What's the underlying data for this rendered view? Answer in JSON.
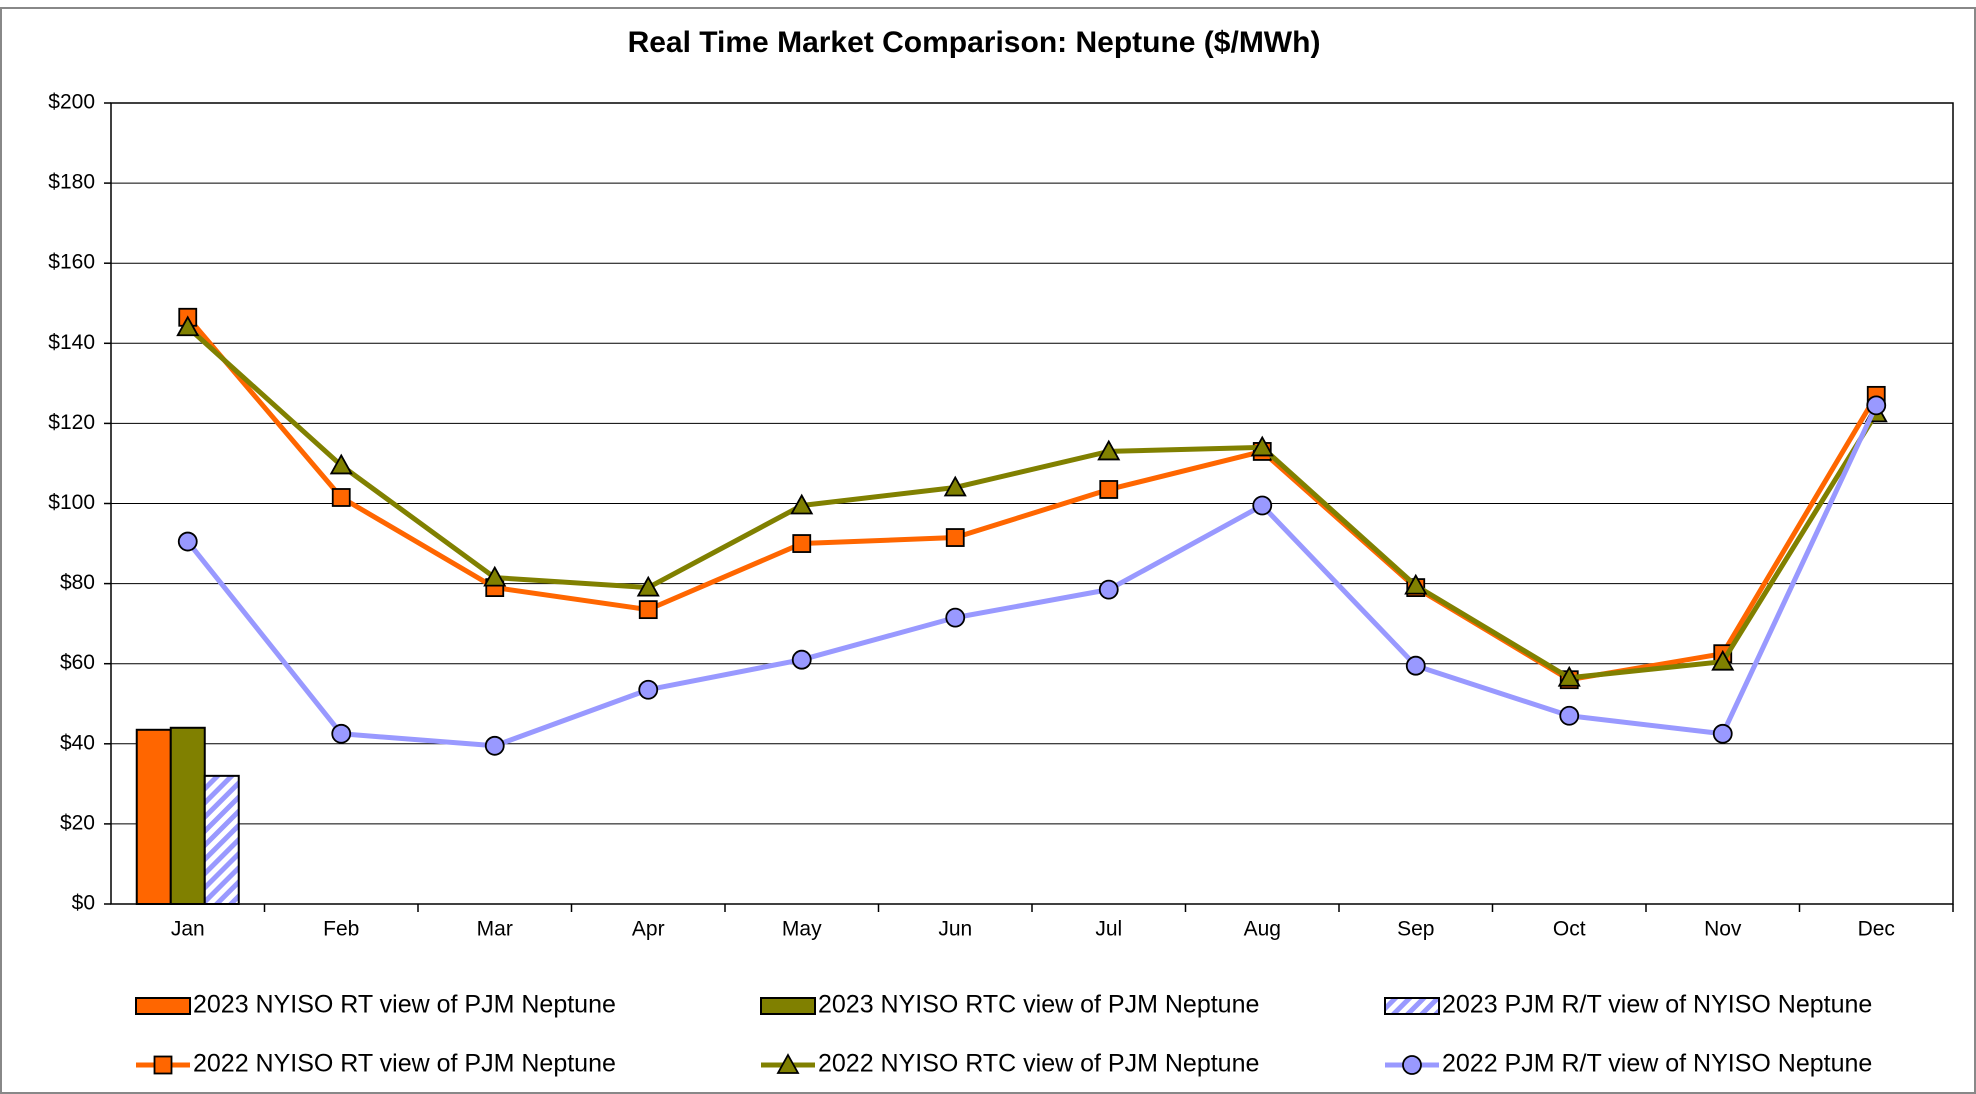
{
  "chart_data": {
    "type": "combo",
    "title": "Real Time Market Comparison: Neptune ($/MWh)",
    "categories": [
      "Jan",
      "Feb",
      "Mar",
      "Apr",
      "May",
      "Jun",
      "Jul",
      "Aug",
      "Sep",
      "Oct",
      "Nov",
      "Dec"
    ],
    "ylim": [
      0,
      200
    ],
    "yticks": [
      {
        "value": 0,
        "label": "$0"
      },
      {
        "value": 20,
        "label": "$20"
      },
      {
        "value": 40,
        "label": "$40"
      },
      {
        "value": 60,
        "label": "$60"
      },
      {
        "value": 80,
        "label": "$80"
      },
      {
        "value": 100,
        "label": "$100"
      },
      {
        "value": 120,
        "label": "$120"
      },
      {
        "value": 140,
        "label": "$140"
      },
      {
        "value": 160,
        "label": "$160"
      },
      {
        "value": 180,
        "label": "$180"
      },
      {
        "value": 200,
        "label": "$200"
      }
    ],
    "grid": true,
    "legend": "bottom",
    "series": [
      {
        "name": "2023 NYISO RT view of PJM Neptune",
        "type": "bar",
        "color": "#ff6600",
        "values": [
          43.5,
          null,
          null,
          null,
          null,
          null,
          null,
          null,
          null,
          null,
          null,
          null
        ]
      },
      {
        "name": "2023 NYISO RTC view of PJM Neptune",
        "type": "bar",
        "color": "#808000",
        "values": [
          44,
          null,
          null,
          null,
          null,
          null,
          null,
          null,
          null,
          null,
          null,
          null
        ]
      },
      {
        "name": "2023 PJM R/T view of NYISO Neptune",
        "type": "bar",
        "color": "#9999ff",
        "pattern": "hatch",
        "values": [
          32,
          null,
          null,
          null,
          null,
          null,
          null,
          null,
          null,
          null,
          null,
          null
        ]
      },
      {
        "name": "2022 NYISO RT view of PJM Neptune",
        "type": "line",
        "marker": "square",
        "color": "#ff6600",
        "values": [
          146.5,
          101.5,
          79,
          73.5,
          90,
          91.5,
          103.5,
          113,
          79,
          56,
          62.5,
          127
        ]
      },
      {
        "name": "2022 NYISO RTC view of PJM Neptune",
        "type": "line",
        "marker": "triangle",
        "color": "#808000",
        "values": [
          144,
          109.5,
          81.5,
          79,
          99.5,
          104,
          113,
          114,
          79.5,
          56.5,
          60.5,
          122.5
        ]
      },
      {
        "name": "2022 PJM R/T view of NYISO Neptune",
        "type": "line",
        "marker": "circle",
        "color": "#9999ff",
        "values": [
          90.5,
          42.5,
          39.5,
          53.5,
          61,
          71.5,
          78.5,
          99.5,
          59.5,
          47,
          42.5,
          124.5
        ]
      }
    ]
  }
}
